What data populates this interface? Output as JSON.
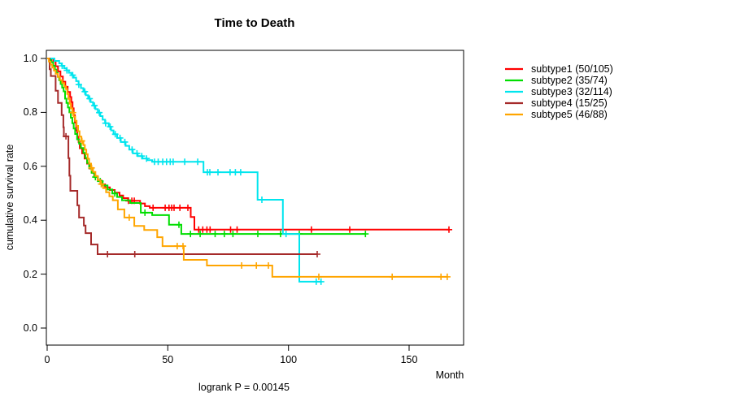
{
  "figure": {
    "title": "Time to Death",
    "x_axis_label": "Month",
    "y_axis_label": "cumulative survival rate",
    "footnote": "logrank P = 0.00145",
    "xtick_labels": [
      "0",
      "50",
      "100",
      "150"
    ],
    "ytick_labels_top_to_bottom": [
      "1.0",
      "0.8",
      "0.6",
      "0.4",
      "0.2",
      "0.0"
    ]
  },
  "chart_data": {
    "type": "line",
    "variant": "kaplan-meier-step",
    "title": "Time to Death",
    "xlabel": "Month",
    "ylabel": "cumulative survival rate",
    "annotation": "logrank P = 0.00145",
    "xlim": [
      0,
      173
    ],
    "ylim": [
      0,
      1
    ],
    "xticks": [
      0,
      50,
      100,
      150
    ],
    "yticks": [
      0,
      0.2,
      0.4,
      0.6,
      0.8,
      1.0
    ],
    "grid": false,
    "legend_position": "right-outside",
    "series": [
      {
        "name": "subtype1",
        "label": "subtype1 (50/105)",
        "deaths": 50,
        "n": 105,
        "color": "#FF0000",
        "end_month": 166.5,
        "steps": [
          [
            0,
            1.0
          ],
          [
            2.5,
            0.99
          ],
          [
            3.5,
            0.971
          ],
          [
            4.5,
            0.952
          ],
          [
            5.5,
            0.933
          ],
          [
            6.5,
            0.914
          ],
          [
            7.5,
            0.895
          ],
          [
            8.5,
            0.876
          ],
          [
            9.5,
            0.857
          ],
          [
            10,
            0.838
          ],
          [
            10.5,
            0.815
          ],
          [
            11,
            0.79
          ],
          [
            11.5,
            0.762
          ],
          [
            12,
            0.733
          ],
          [
            12.5,
            0.71
          ],
          [
            13,
            0.69
          ],
          [
            13.5,
            0.667
          ],
          [
            14.5,
            0.648
          ],
          [
            15.5,
            0.629
          ],
          [
            16.5,
            0.61
          ],
          [
            17.5,
            0.592
          ],
          [
            18.5,
            0.576
          ],
          [
            19.5,
            0.561
          ],
          [
            21,
            0.547
          ],
          [
            22.5,
            0.533
          ],
          [
            24,
            0.522
          ],
          [
            26,
            0.512
          ],
          [
            28,
            0.502
          ],
          [
            30,
            0.492
          ],
          [
            31.5,
            0.482
          ],
          [
            33.5,
            0.472
          ],
          [
            38.5,
            0.462
          ],
          [
            40.5,
            0.452
          ],
          [
            42.5,
            0.446
          ],
          [
            59.5,
            0.412
          ],
          [
            61,
            0.365
          ]
        ],
        "censor_months": [
          33.7,
          35.1,
          36.1,
          43.9,
          48.9,
          50.5,
          51.6,
          52.6,
          55,
          58.3,
          62.8,
          64.5,
          66.2,
          67.5,
          76,
          78.7,
          109.5,
          125.4,
          166.5
        ]
      },
      {
        "name": "subtype2",
        "label": "subtype2 (35/74)",
        "deaths": 35,
        "n": 74,
        "color": "#00DE00",
        "end_month": 131.9,
        "steps": [
          [
            0,
            1.0
          ],
          [
            1.7,
            0.986
          ],
          [
            2.5,
            0.973
          ],
          [
            3.2,
            0.959
          ],
          [
            3.8,
            0.946
          ],
          [
            4.4,
            0.932
          ],
          [
            5,
            0.919
          ],
          [
            5.6,
            0.905
          ],
          [
            6.2,
            0.892
          ],
          [
            6.8,
            0.878
          ],
          [
            7.4,
            0.851
          ],
          [
            8,
            0.835
          ],
          [
            8.6,
            0.818
          ],
          [
            9.2,
            0.8
          ],
          [
            9.8,
            0.78
          ],
          [
            10.4,
            0.76
          ],
          [
            11,
            0.74
          ],
          [
            11.6,
            0.72
          ],
          [
            12.4,
            0.7
          ],
          [
            13.2,
            0.684
          ],
          [
            14,
            0.668
          ],
          [
            15,
            0.65
          ],
          [
            15.8,
            0.631
          ],
          [
            16.6,
            0.612
          ],
          [
            17.4,
            0.593
          ],
          [
            18.4,
            0.576
          ],
          [
            19.6,
            0.56
          ],
          [
            21,
            0.545
          ],
          [
            23,
            0.529
          ],
          [
            25,
            0.514
          ],
          [
            27,
            0.499
          ],
          [
            29,
            0.486
          ],
          [
            31,
            0.474
          ],
          [
            34.4,
            0.464
          ],
          [
            38.8,
            0.428
          ],
          [
            43.5,
            0.419
          ],
          [
            50.5,
            0.383
          ],
          [
            55.6,
            0.349
          ]
        ],
        "censor_months": [
          20,
          22,
          28,
          40.5,
          54.6,
          59.4,
          63.4,
          69.6,
          73.4,
          77,
          87.3,
          96.7,
          104.5,
          131.9
        ]
      },
      {
        "name": "subtype3",
        "label": "subtype3 (32/114)",
        "deaths": 32,
        "n": 114,
        "color": "#00E5EE",
        "end_month": 113.5,
        "steps": [
          [
            0,
            1.0
          ],
          [
            3,
            0.991
          ],
          [
            5,
            0.982
          ],
          [
            6,
            0.973
          ],
          [
            7,
            0.964
          ],
          [
            8,
            0.956
          ],
          [
            9,
            0.947
          ],
          [
            10,
            0.938
          ],
          [
            11,
            0.929
          ],
          [
            12,
            0.916
          ],
          [
            13,
            0.903
          ],
          [
            14,
            0.89
          ],
          [
            15,
            0.877
          ],
          [
            16,
            0.864
          ],
          [
            17,
            0.851
          ],
          [
            18,
            0.838
          ],
          [
            19,
            0.825
          ],
          [
            20,
            0.812
          ],
          [
            21,
            0.799
          ],
          [
            22,
            0.786
          ],
          [
            23,
            0.773
          ],
          [
            24,
            0.76
          ],
          [
            25.5,
            0.747
          ],
          [
            26.5,
            0.733
          ],
          [
            27.5,
            0.719
          ],
          [
            29,
            0.705
          ],
          [
            30.5,
            0.69
          ],
          [
            32.5,
            0.676
          ],
          [
            34,
            0.662
          ],
          [
            35.5,
            0.648
          ],
          [
            37.5,
            0.638
          ],
          [
            39.5,
            0.629
          ],
          [
            41.5,
            0.623
          ],
          [
            43.5,
            0.617
          ],
          [
            64.8,
            0.578
          ],
          [
            87.2,
            0.476
          ],
          [
            97.7,
            0.349
          ],
          [
            104.5,
            0.172
          ]
        ],
        "censor_months": [
          6.2,
          8.2,
          10.6,
          13.1,
          15.6,
          17.6,
          19.6,
          21.6,
          24.2,
          26.1,
          28.2,
          30.2,
          32.2,
          35.2,
          37.2,
          39.2,
          41.2,
          44.5,
          46,
          47.9,
          49.5,
          51,
          52.2,
          57,
          62.4,
          66.4,
          67.4,
          70.8,
          75.8,
          78,
          80.2,
          89,
          99,
          111.5,
          113.5
        ]
      },
      {
        "name": "subtype4",
        "label": "subtype4 (15/25)",
        "deaths": 15,
        "n": 25,
        "color": "#A52A2A",
        "end_month": 111.9,
        "steps": [
          [
            0,
            1.0
          ],
          [
            1,
            0.96
          ],
          [
            1.5,
            0.935
          ],
          [
            3.5,
            0.88
          ],
          [
            4.5,
            0.835
          ],
          [
            6,
            0.79
          ],
          [
            6.7,
            0.745
          ],
          [
            6.9,
            0.711
          ],
          [
            8.8,
            0.63
          ],
          [
            9.2,
            0.565
          ],
          [
            9.6,
            0.509
          ],
          [
            12.5,
            0.455
          ],
          [
            13.2,
            0.41
          ],
          [
            15.2,
            0.38
          ],
          [
            15.9,
            0.352
          ],
          [
            18.2,
            0.31
          ],
          [
            20.9,
            0.274
          ]
        ],
        "censor_months": [
          7.8,
          25,
          36.3,
          111.9
        ]
      },
      {
        "name": "subtype5",
        "label": "subtype5 (46/88)",
        "deaths": 46,
        "n": 88,
        "color": "#FFA500",
        "end_month": 165.8,
        "steps": [
          [
            0,
            1.0
          ],
          [
            0.7,
            0.989
          ],
          [
            1.4,
            0.977
          ],
          [
            2.1,
            0.966
          ],
          [
            2.8,
            0.955
          ],
          [
            3.5,
            0.943
          ],
          [
            4.4,
            0.932
          ],
          [
            5.3,
            0.92
          ],
          [
            6.2,
            0.909
          ],
          [
            7.1,
            0.897
          ],
          [
            7.8,
            0.886
          ],
          [
            8.3,
            0.868
          ],
          [
            8.8,
            0.85
          ],
          [
            9.3,
            0.832
          ],
          [
            9.8,
            0.815
          ],
          [
            10.4,
            0.799
          ],
          [
            11,
            0.784
          ],
          [
            11.6,
            0.769
          ],
          [
            12.2,
            0.75
          ],
          [
            12.8,
            0.73
          ],
          [
            13.4,
            0.71
          ],
          [
            14.2,
            0.694
          ],
          [
            15,
            0.679
          ],
          [
            15.6,
            0.662
          ],
          [
            16.2,
            0.645
          ],
          [
            16.8,
            0.628
          ],
          [
            17.4,
            0.61
          ],
          [
            18.2,
            0.594
          ],
          [
            19,
            0.579
          ],
          [
            20,
            0.564
          ],
          [
            21,
            0.549
          ],
          [
            22,
            0.534
          ],
          [
            23.2,
            0.519
          ],
          [
            24.4,
            0.504
          ],
          [
            25.8,
            0.489
          ],
          [
            27.2,
            0.474
          ],
          [
            29.3,
            0.44
          ],
          [
            32,
            0.41
          ],
          [
            36.1,
            0.379
          ],
          [
            40.2,
            0.364
          ],
          [
            45.6,
            0.337
          ],
          [
            47.8,
            0.304
          ],
          [
            56.6,
            0.253
          ],
          [
            66.2,
            0.232
          ],
          [
            93.3,
            0.19
          ]
        ],
        "censor_months": [
          10.7,
          14.4,
          18.4,
          22.4,
          34,
          53.9,
          56.3,
          80.6,
          86.7,
          91.7,
          112.6,
          143,
          163.2,
          165.8
        ]
      }
    ]
  }
}
